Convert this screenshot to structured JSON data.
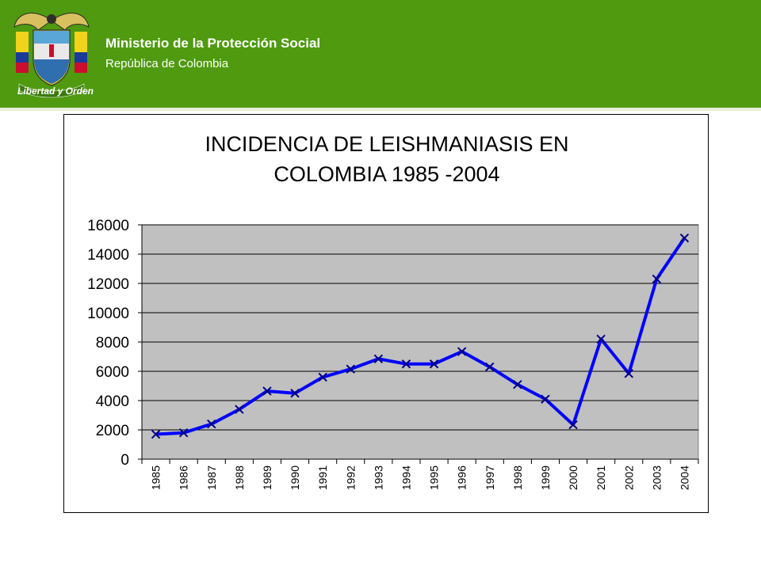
{
  "header": {
    "ministry": "Ministerio de la Protección Social",
    "republic": "República de Colombia",
    "motto": "Libertad y Orden",
    "background_color": "#4f9a0f"
  },
  "chart_data": {
    "type": "line",
    "title_lines": [
      "INCIDENCIA DE LEISHMANIASIS EN",
      "COLOMBIA 1985 -2004"
    ],
    "xlabel": "",
    "ylabel": "",
    "ylim": [
      0,
      16000
    ],
    "yticks": [
      0,
      2000,
      4000,
      6000,
      8000,
      10000,
      12000,
      14000,
      16000
    ],
    "grid": true,
    "legend": "none",
    "plot_background": "#c0c0c0",
    "line_color": "#0000ff",
    "marker": "x",
    "categories": [
      "1985",
      "1986",
      "1987",
      "1988",
      "1989",
      "1990",
      "1991",
      "1992",
      "1993",
      "1994",
      "1995",
      "1996",
      "1997",
      "1998",
      "1999",
      "2000",
      "2001",
      "2002",
      "2003",
      "2004"
    ],
    "series": [
      {
        "values": [
          1700,
          1800,
          2400,
          3400,
          4650,
          4500,
          5600,
          6150,
          6850,
          6500,
          6500,
          7350,
          6300,
          5100,
          4100,
          2350,
          8200,
          5850,
          12300,
          15100
        ]
      }
    ]
  }
}
